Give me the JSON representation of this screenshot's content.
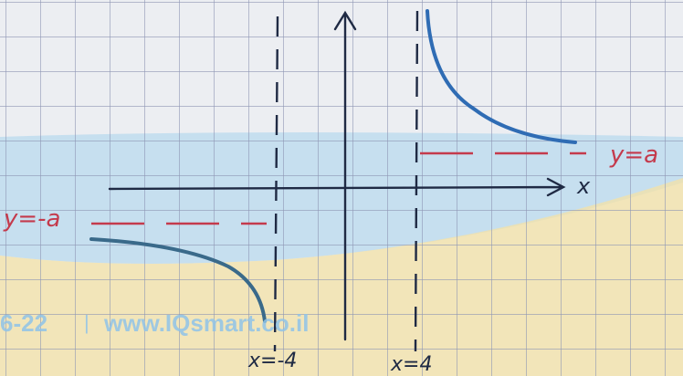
{
  "labels": {
    "x_axis": "x",
    "asymptote_right": "y=a",
    "asymptote_left": "y=-a",
    "vertical_left": "x=-4",
    "vertical_right": "x=4"
  },
  "watermark": {
    "code": "6-22",
    "separator": "|",
    "site": "www.IQsmart.co.il"
  }
}
